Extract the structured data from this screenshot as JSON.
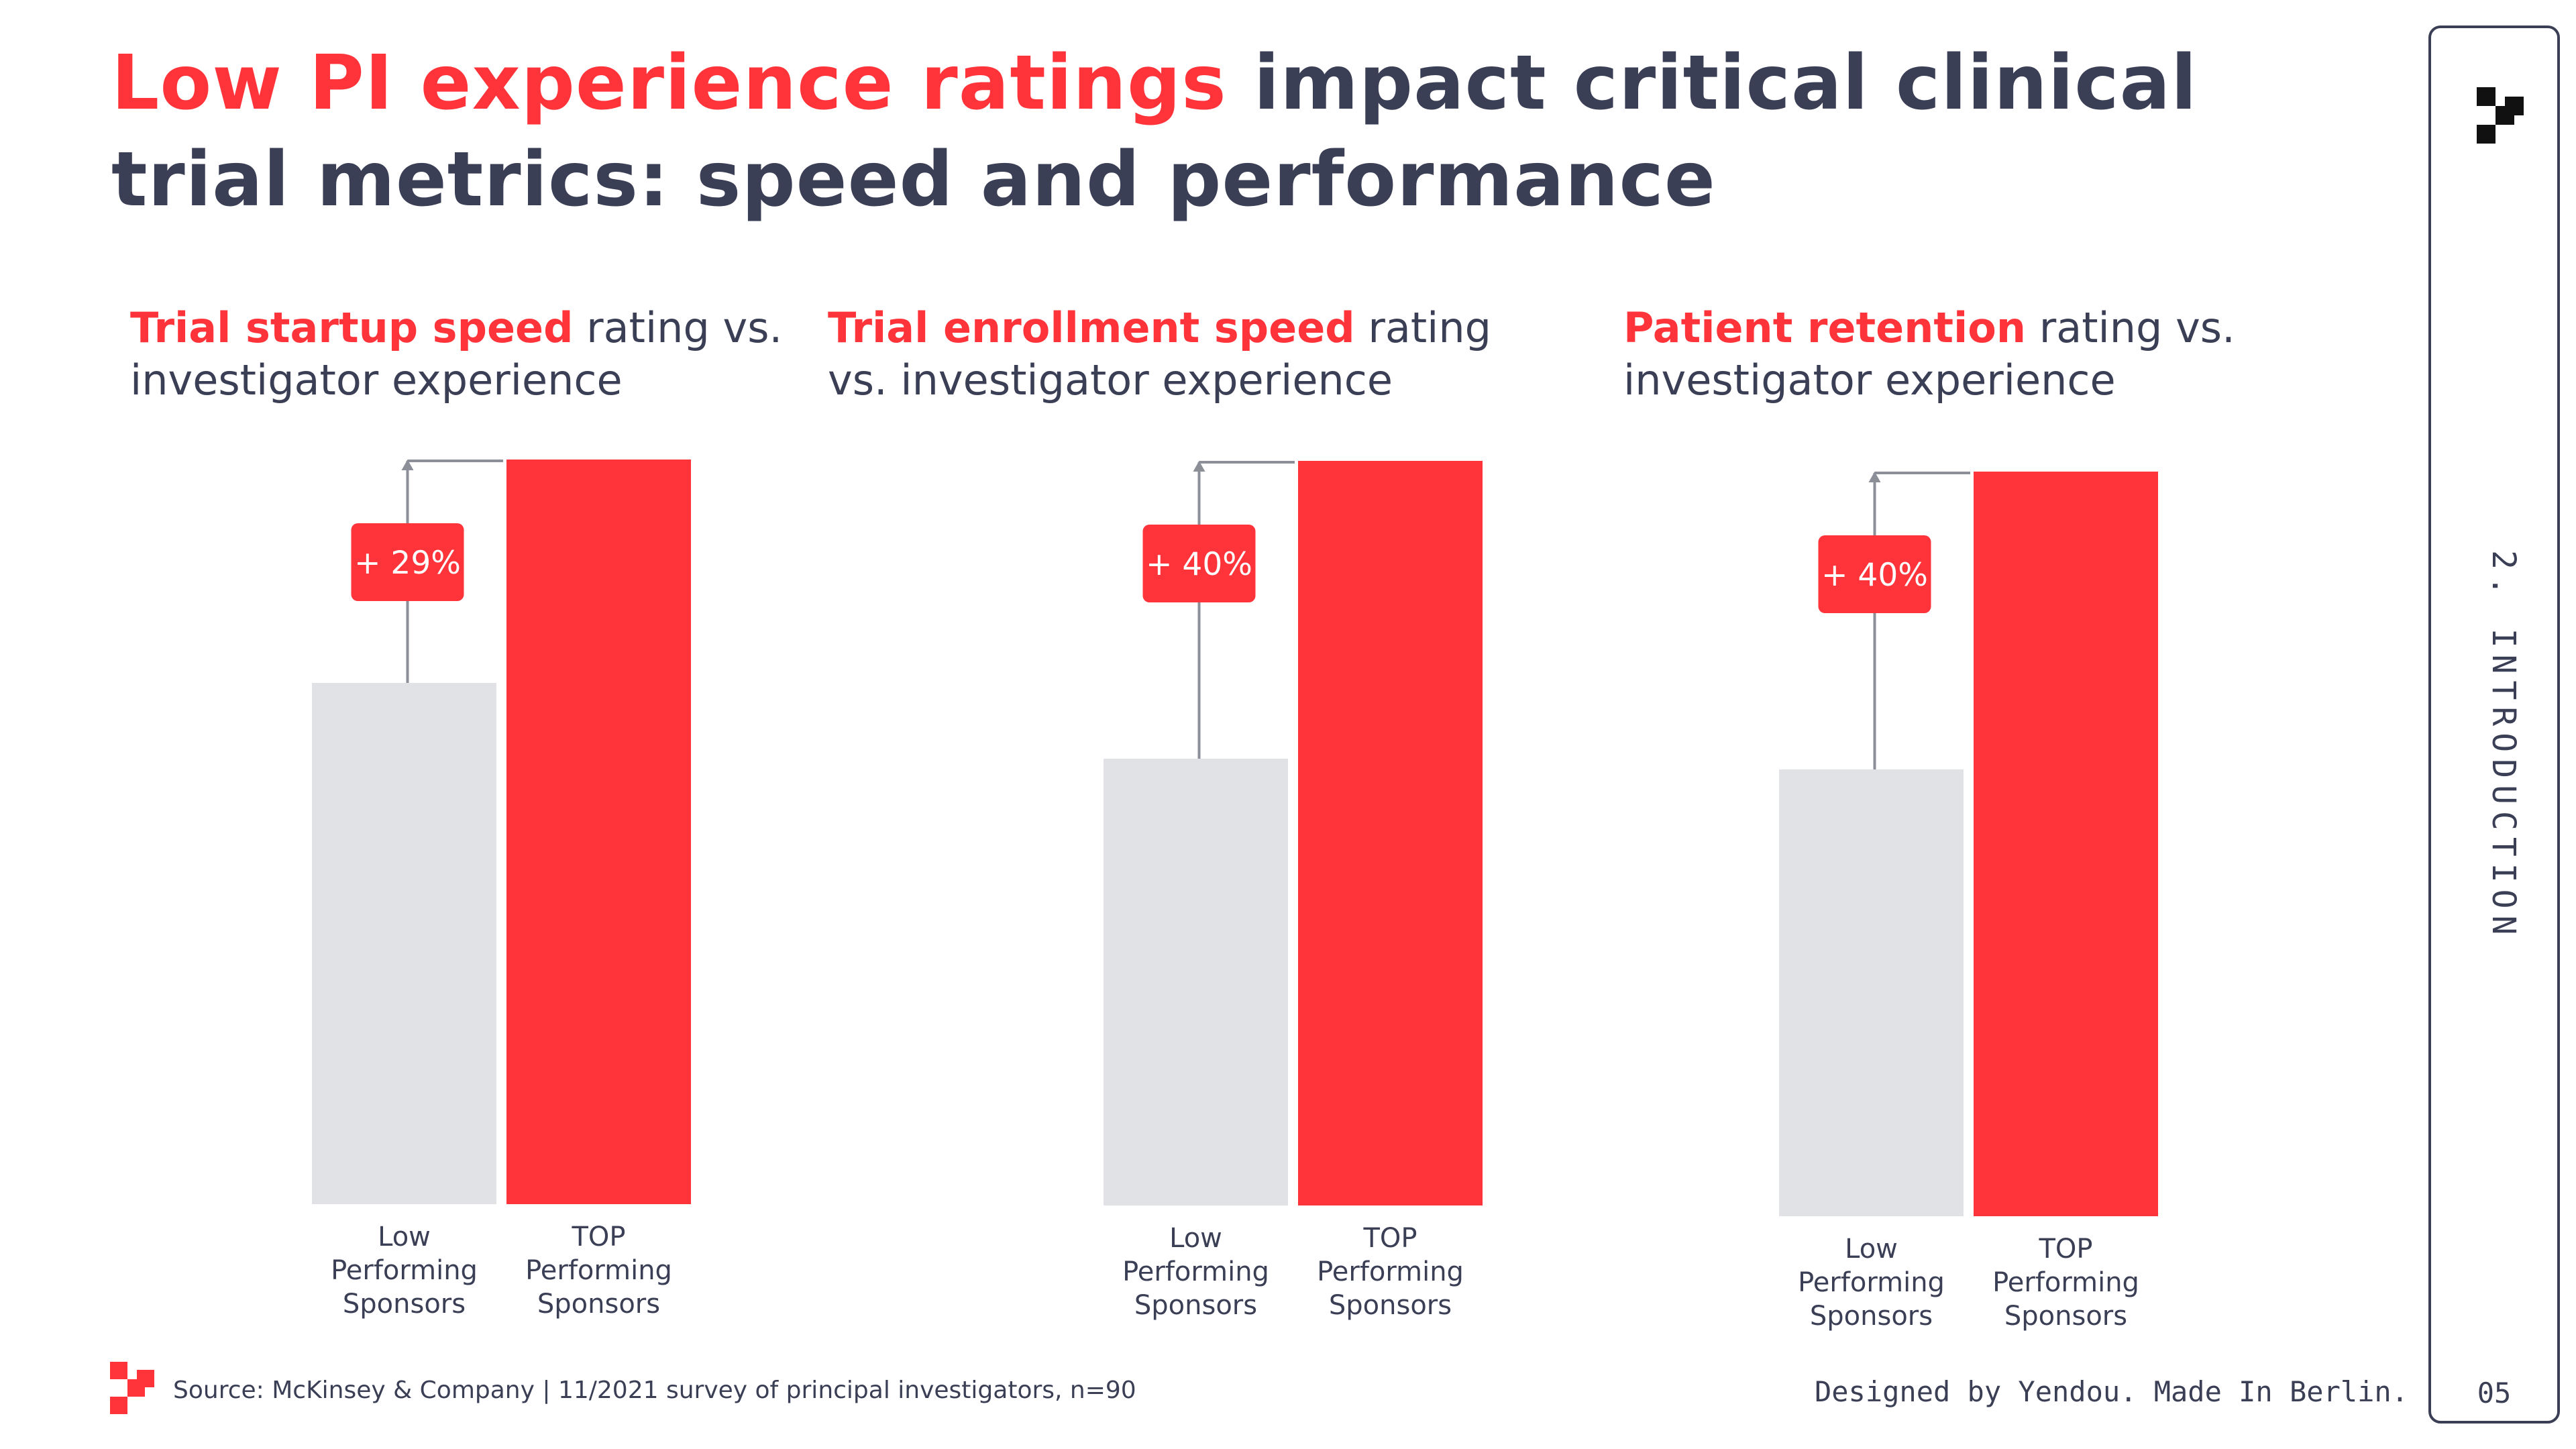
{
  "title": {
    "highlight": "Low PI experience ratings",
    "rest": " impact critical clinical trial metrics: speed and performance"
  },
  "chart_data": [
    {
      "type": "bar",
      "title_highlight": "Trial startup speed",
      "title_rest": " rating vs. investigator experience",
      "categories": [
        [
          "Low",
          "Performing",
          "Sponsors"
        ],
        [
          "TOP",
          "Performing",
          "Sponsors"
        ]
      ],
      "values": [
        70,
        100
      ],
      "annotation": "+ 29%",
      "ylim": [
        0,
        100
      ]
    },
    {
      "type": "bar",
      "title_highlight": "Trial enrollment speed",
      "title_rest": " rating vs. investigator experience",
      "categories": [
        [
          "Low",
          "Performing",
          "Sponsors"
        ],
        [
          "TOP",
          "Performing",
          "Sponsors"
        ]
      ],
      "values": [
        60,
        100
      ],
      "annotation": "+ 40%",
      "ylim": [
        0,
        100
      ]
    },
    {
      "type": "bar",
      "title_highlight": "Patient retention",
      "title_rest": " rating vs. investigator experience",
      "categories": [
        [
          "Low",
          "Performing",
          "Sponsors"
        ],
        [
          "TOP",
          "Performing",
          "Sponsors"
        ]
      ],
      "values": [
        60,
        100
      ],
      "annotation": "+ 40%",
      "ylim": [
        0,
        100
      ]
    }
  ],
  "colors": {
    "accent": "#ff343b",
    "low_bar": "#e1e2e6",
    "text": "#3b3f55",
    "connector": "#8d8f98"
  },
  "sidebar": {
    "section_label": "2. INTRODUCTION",
    "page_number": "05",
    "logo_icon": "brand-logo-icon"
  },
  "footer": {
    "source": "Source: McKinsey & Company | 11/2021 survey of principal investigators, n=90",
    "credit": "Designed by Yendou. Made In Berlin."
  }
}
